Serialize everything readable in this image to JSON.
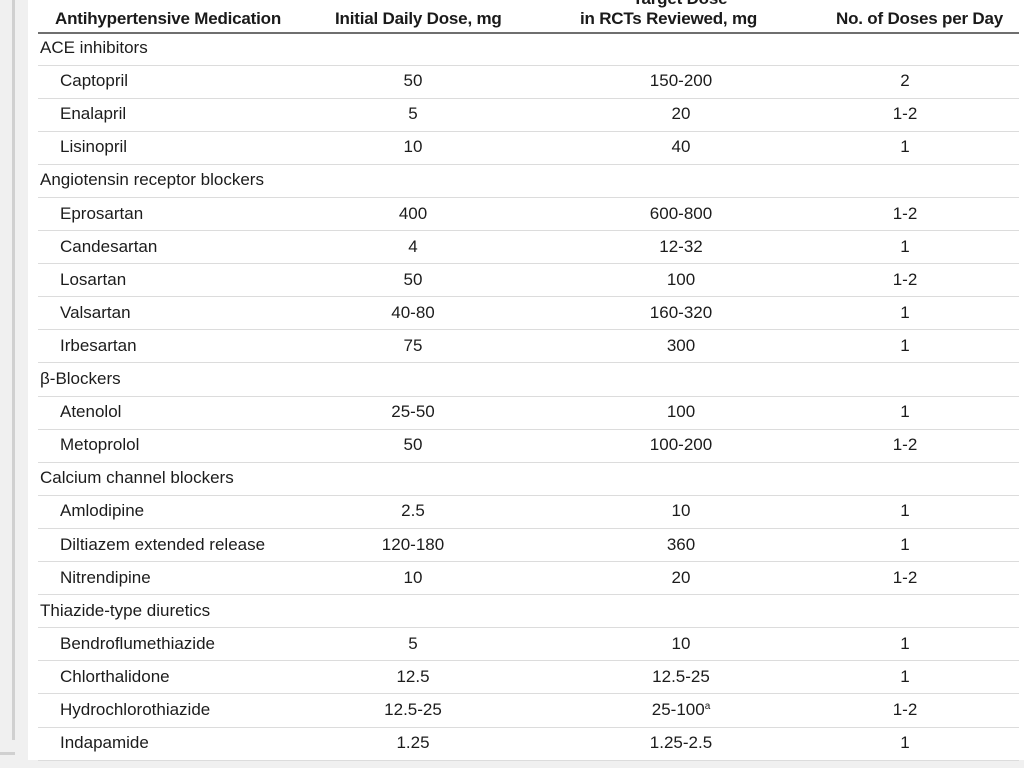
{
  "table": {
    "headers": {
      "medication": "Antihypertensive Medication",
      "initial": "Initial Daily Dose, mg",
      "target_line1": "Target Dose",
      "target_line2": "in RCTs Reviewed, mg",
      "doses": "No. of Doses per Day"
    },
    "groups": [
      {
        "name": "ACE inhibitors",
        "rows": [
          {
            "drug": "Captopril",
            "initial": "50",
            "target": "150-200",
            "doses": "2"
          },
          {
            "drug": "Enalapril",
            "initial": "5",
            "target": "20",
            "doses": "1-2"
          },
          {
            "drug": "Lisinopril",
            "initial": "10",
            "target": "40",
            "doses": "1"
          }
        ]
      },
      {
        "name": "Angiotensin receptor blockers",
        "rows": [
          {
            "drug": "Eprosartan",
            "initial": "400",
            "target": "600-800",
            "doses": "1-2"
          },
          {
            "drug": "Candesartan",
            "initial": "4",
            "target": "12-32",
            "doses": "1"
          },
          {
            "drug": "Losartan",
            "initial": "50",
            "target": "100",
            "doses": "1-2"
          },
          {
            "drug": "Valsartan",
            "initial": "40-80",
            "target": "160-320",
            "doses": "1"
          },
          {
            "drug": "Irbesartan",
            "initial": "75",
            "target": "300",
            "doses": "1"
          }
        ]
      },
      {
        "name": "β-Blockers",
        "rows": [
          {
            "drug": "Atenolol",
            "initial": "25-50",
            "target": "100",
            "doses": "1"
          },
          {
            "drug": "Metoprolol",
            "initial": "50",
            "target": "100-200",
            "doses": "1-2"
          }
        ]
      },
      {
        "name": "Calcium channel blockers",
        "rows": [
          {
            "drug": "Amlodipine",
            "initial": "2.5",
            "target": "10",
            "doses": "1"
          },
          {
            "drug": "Diltiazem extended release",
            "initial": "120-180",
            "target": "360",
            "doses": "1"
          },
          {
            "drug": "Nitrendipine",
            "initial": "10",
            "target": "20",
            "doses": "1-2"
          }
        ]
      },
      {
        "name": "Thiazide-type diuretics",
        "rows": [
          {
            "drug": "Bendroflumethiazide",
            "initial": "5",
            "target": "10",
            "doses": "1"
          },
          {
            "drug": "Chlorthalidone",
            "initial": "12.5",
            "target": "12.5-25",
            "doses": "1"
          },
          {
            "drug": "Hydrochlorothiazide",
            "initial": "12.5-25",
            "target": "25-100",
            "target_sup": "a",
            "doses": "1-2"
          },
          {
            "drug": "Indapamide",
            "initial": "1.25",
            "target": "1.25-2.5",
            "doses": "1"
          }
        ]
      }
    ]
  }
}
